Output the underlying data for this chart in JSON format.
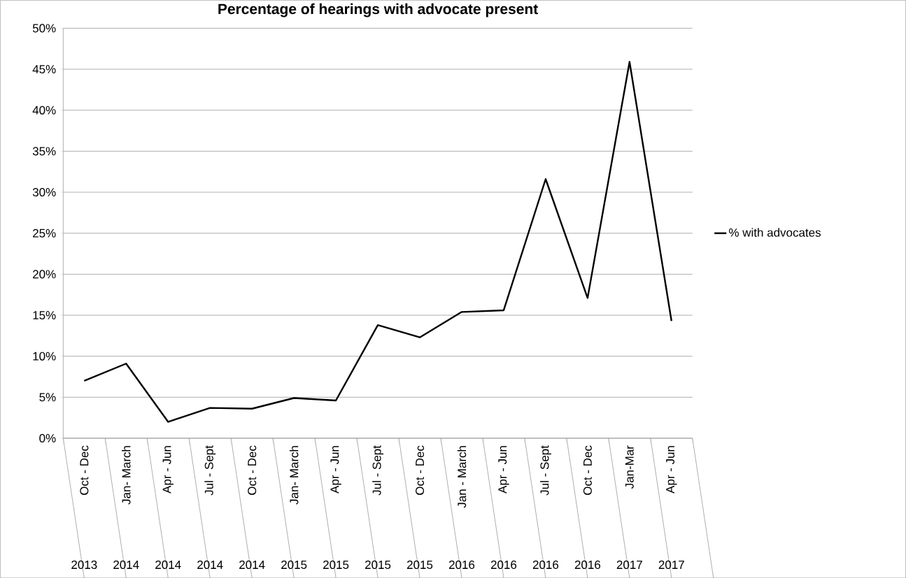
{
  "chart_data": {
    "type": "line",
    "title": "Percentage of hearings with advocate present",
    "categories": [
      "Oct - Dec",
      "Jan- March",
      "Apr - Jun",
      "Jul - Sept",
      "Oct - Dec",
      "Jan- March",
      "Apr - Jun",
      "Jul - Sept",
      "Oct - Dec",
      "Jan - March",
      "Apr - Jun",
      "Jul - Sept",
      "Oct - Dec",
      "Jan-Mar",
      "Apr - Jun"
    ],
    "annotations": [
      "2013",
      "2014",
      "2014",
      "2014",
      "2014",
      "2015",
      "2015",
      "2015",
      "2015",
      "2016",
      "2016",
      "2016",
      "2016",
      "2017",
      "2017"
    ],
    "series": [
      {
        "name": "% with advocates",
        "color": "#000000",
        "values": [
          7.0,
          9.1,
          2.0,
          3.7,
          3.6,
          4.9,
          4.6,
          13.8,
          12.3,
          15.4,
          15.6,
          31.6,
          17.1,
          45.9,
          14.3
        ]
      }
    ],
    "ylim": [
      0,
      50
    ],
    "yticks": [
      {
        "value": 0,
        "label": "0%"
      },
      {
        "value": 5,
        "label": "5%"
      },
      {
        "value": 10,
        "label": "10%"
      },
      {
        "value": 15,
        "label": "15%"
      },
      {
        "value": 20,
        "label": "20%"
      },
      {
        "value": 25,
        "label": "25%"
      },
      {
        "value": 30,
        "label": "30%"
      },
      {
        "value": 35,
        "label": "35%"
      },
      {
        "value": 40,
        "label": "40%"
      },
      {
        "value": 45,
        "label": "45%"
      },
      {
        "value": 50,
        "label": "50%"
      }
    ],
    "grid": "y",
    "legend": "right"
  }
}
